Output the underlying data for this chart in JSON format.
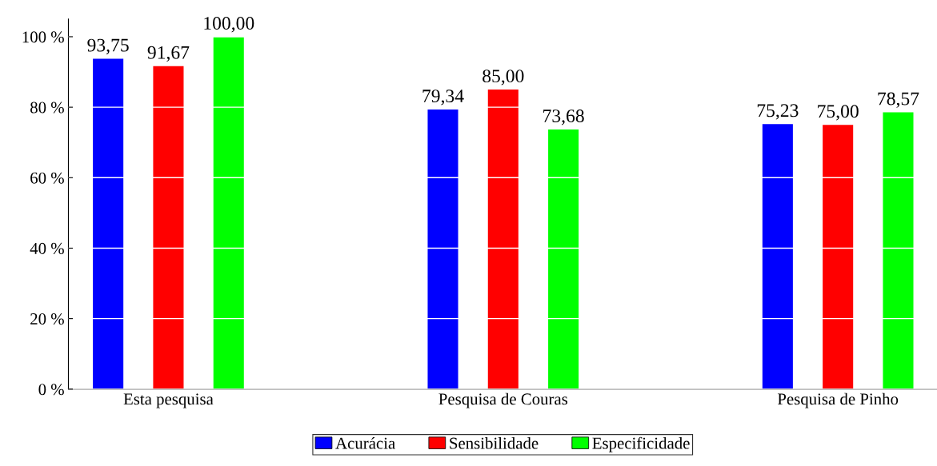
{
  "chart_data": {
    "type": "bar",
    "categories": [
      "Esta pesquisa",
      "Pesquisa de Couras",
      "Pesquisa de Pinho"
    ],
    "series": [
      {
        "name": "Acurácia",
        "color": "#0000ff",
        "values": [
          93.75,
          79.34,
          75.23
        ],
        "value_labels": [
          "93,75",
          "79,34",
          "75,23"
        ]
      },
      {
        "name": "Sensibilidade",
        "color": "#ff0000",
        "values": [
          91.67,
          85.0,
          75.0
        ],
        "value_labels": [
          "91,67",
          "85,00",
          "75,00"
        ]
      },
      {
        "name": "Especificidade",
        "color": "#00ff00",
        "values": [
          100.0,
          73.68,
          78.57
        ],
        "value_labels": [
          "100,00",
          "73,68",
          "78,57"
        ]
      }
    ],
    "ylim": [
      0,
      105
    ],
    "yticks": [
      {
        "value": 0,
        "label": "0 %"
      },
      {
        "value": 20,
        "label": "20 %"
      },
      {
        "value": 40,
        "label": "40 %"
      },
      {
        "value": 60,
        "label": "60 %"
      },
      {
        "value": 80,
        "label": "80 %"
      },
      {
        "value": 100,
        "label": "100 %"
      }
    ],
    "grid": "y",
    "legend": "bottom"
  }
}
